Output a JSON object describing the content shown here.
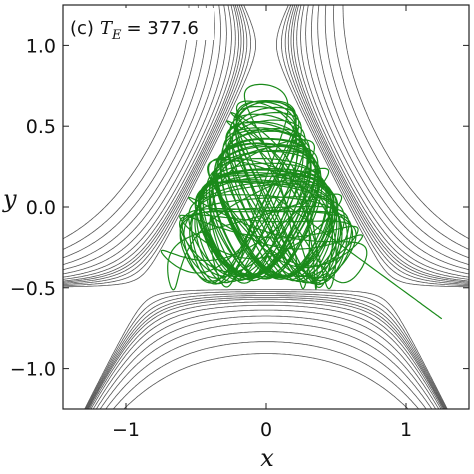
{
  "chart_data": {
    "type": "line",
    "panel_label": "(c)",
    "annotation_symbol": "T",
    "annotation_subscript": "E",
    "annotation_value": "= 377.6",
    "xlabel": "x",
    "ylabel": "y",
    "xlim": [
      -1.45,
      1.45
    ],
    "ylim": [
      -1.25,
      1.25
    ],
    "x_ticks": [
      -1,
      0,
      1
    ],
    "x_tick_labels": [
      "−1",
      "0",
      "1"
    ],
    "y_ticks": [
      -1.0,
      -0.5,
      0.0,
      0.5,
      1.0
    ],
    "y_tick_labels": [
      "−1.0",
      "−0.5",
      "0.0",
      "0.5",
      "1.0"
    ],
    "grid": false,
    "contour_color": "#555555",
    "trajectory_color": "#1a8a1a",
    "contour_levels": [
      0.175,
      0.185,
      0.195,
      0.205,
      0.215,
      0.225,
      0.24,
      0.26,
      0.29,
      0.33,
      0.38,
      0.45,
      0.54,
      0.66
    ],
    "trajectory_bounds": {
      "x": [
        -0.65,
        1.35
      ],
      "y": [
        -0.52,
        0.88
      ]
    }
  }
}
